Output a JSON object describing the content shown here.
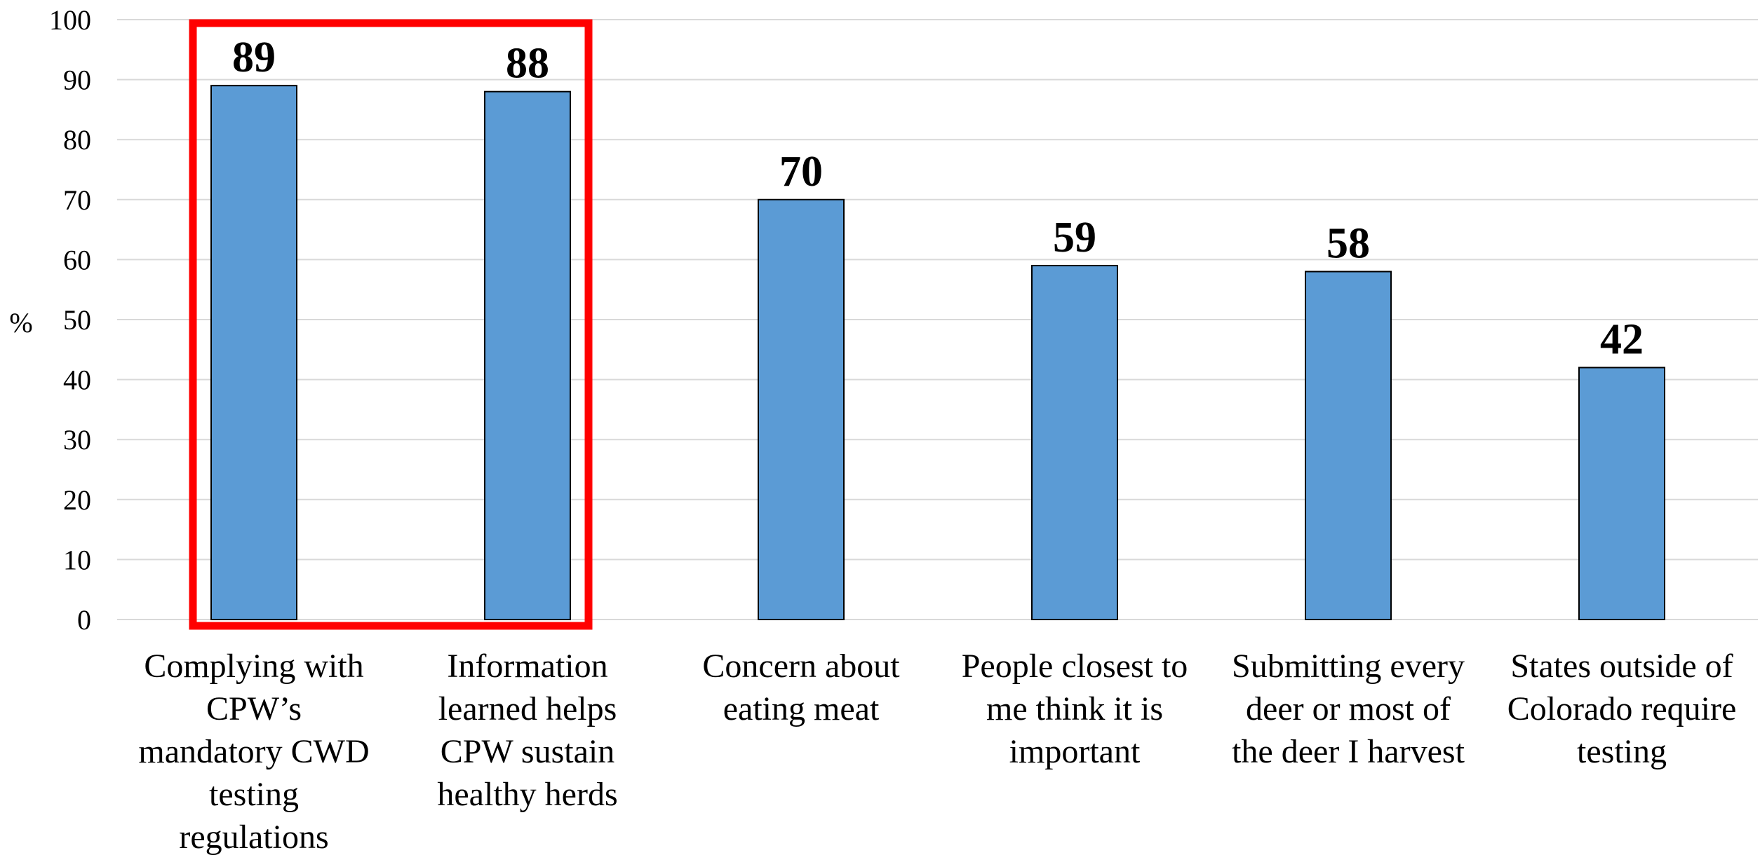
{
  "chart_data": {
    "type": "bar",
    "title": "",
    "xlabel": "",
    "ylabel": "%",
    "ylim": [
      0,
      100
    ],
    "ytick_step": 10,
    "yticks": [
      "0",
      "10",
      "20",
      "30",
      "40",
      "50",
      "60",
      "70",
      "80",
      "90",
      "100"
    ],
    "grid": true,
    "bar_color": "#5B9BD5",
    "bar_edge_color": "#000000",
    "grid_color": "#D9D9D9",
    "highlight_color": "#FF0000",
    "highlight_categories": [
      0,
      1
    ],
    "categories": [
      [
        "Complying with",
        "CPW’s",
        "mandatory CWD",
        "testing",
        "regulations"
      ],
      [
        "Information",
        "learned helps",
        "CPW sustain",
        "healthy herds"
      ],
      [
        "Concern about",
        "eating meat"
      ],
      [
        "People closest to",
        "me think it is",
        "important"
      ],
      [
        "Submitting every",
        "deer or most of",
        "the deer I harvest"
      ],
      [
        "States outside of",
        "Colorado require",
        "testing"
      ]
    ],
    "values": [
      89,
      88,
      70,
      59,
      58,
      42
    ],
    "data_labels": [
      "89",
      "88",
      "70",
      "59",
      "58",
      "42"
    ]
  }
}
